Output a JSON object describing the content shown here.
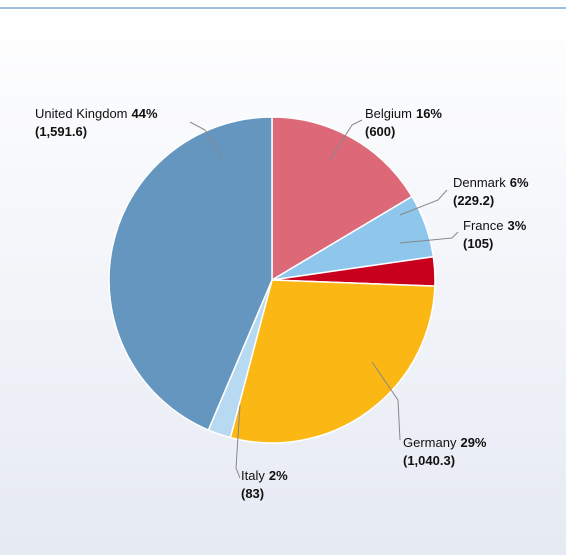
{
  "chart_data": {
    "type": "pie",
    "categories": [
      "Belgium",
      "Denmark",
      "France",
      "Germany",
      "Italy",
      "United Kingdom"
    ],
    "values": [
      600,
      229.2,
      105,
      1040.3,
      83,
      1591.6
    ],
    "value_labels": [
      "(600)",
      "(229.2)",
      "(105)",
      "(1,040.3)",
      "(83)",
      "(1,591.6)"
    ],
    "percent_labels": [
      "16%",
      "6%",
      "3%",
      "29%",
      "2%",
      "44%"
    ],
    "colors": [
      "#dc6878",
      "#8ec6ec",
      "#c8001e",
      "#fbb714",
      "#b8d9f2",
      "#6596c0"
    ]
  }
}
